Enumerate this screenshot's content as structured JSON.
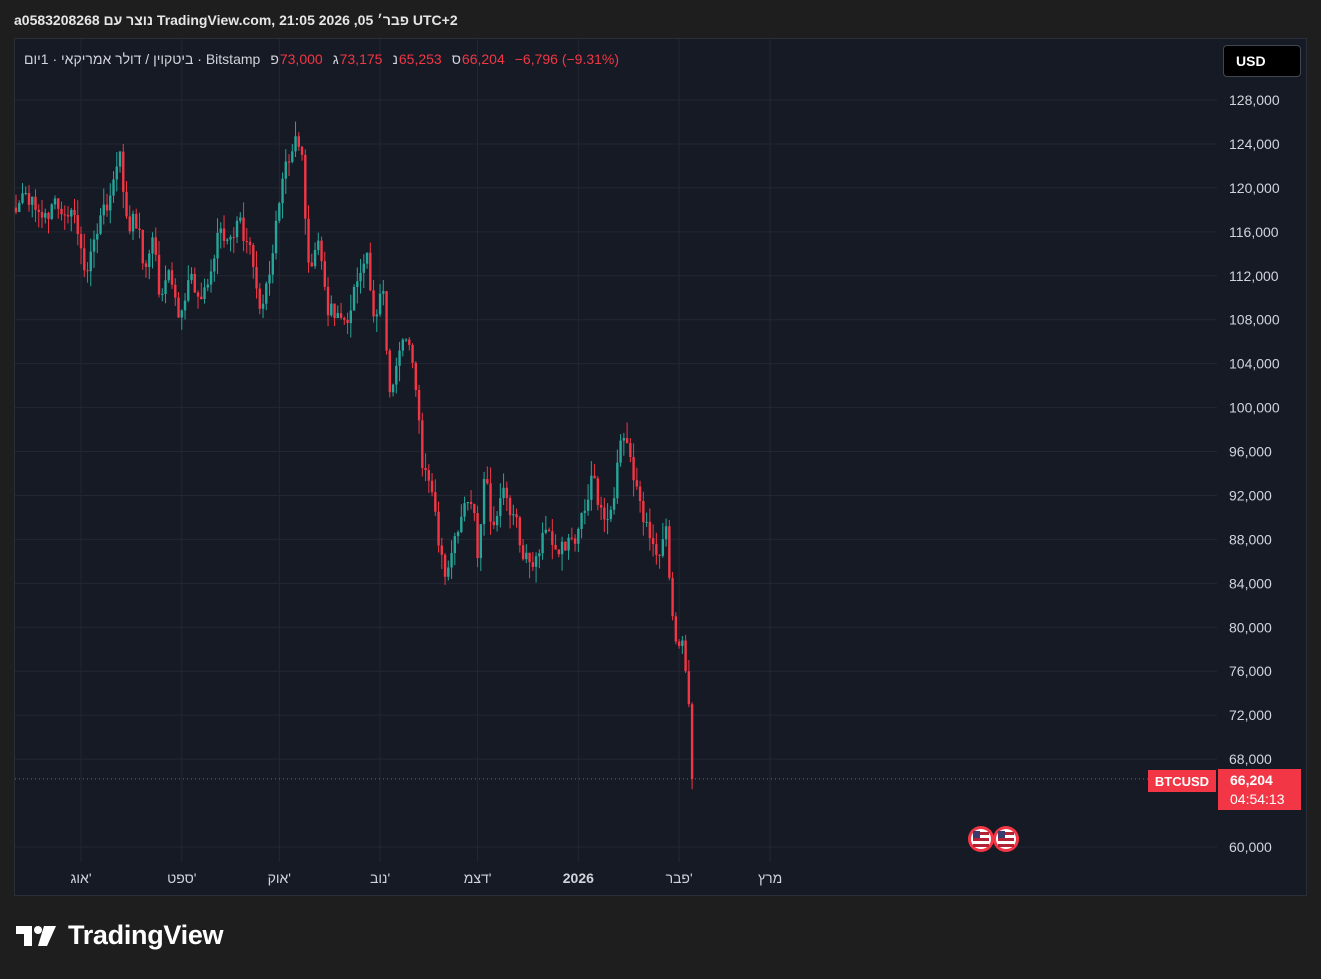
{
  "header": {
    "author_line": "a0583208268 נוצר עם TradingView.com, 21:05 2026 ,05 פבר׳ UTC+2"
  },
  "legend": {
    "symbol_line": "ביטקוין / דולר אמריקאי · 1יום · Bitstamp",
    "open_label": "פ",
    "open": "73,000",
    "high_label": "ג",
    "high": "73,175",
    "low_label": "נ",
    "low": "65,253",
    "close_label": "ס",
    "close": "66,204",
    "change": "−6,796 (−9.31%)"
  },
  "currency_button": "USD",
  "price_tag": {
    "symbol": "BTCUSD",
    "price": "66,204",
    "countdown": "04:54:13"
  },
  "brand": "TradingView",
  "colors": {
    "up": "#26a69a",
    "down": "#f23645",
    "background": "#161a25",
    "grid": "#232733",
    "axis_text": "#d1d4dc"
  },
  "event_icons": [
    "us-flag-icon",
    "us-flag-icon"
  ],
  "chart_data": {
    "type": "candlestick",
    "y_ticks": [
      "128,000",
      "124,000",
      "120,000",
      "116,000",
      "112,000",
      "108,000",
      "104,000",
      "100,000",
      "96,000",
      "92,000",
      "88,000",
      "84,000",
      "80,000",
      "76,000",
      "72,000",
      "68,000",
      "60,000"
    ],
    "y_tick_values": [
      128000,
      124000,
      120000,
      116000,
      112000,
      108000,
      104000,
      100000,
      96000,
      92000,
      88000,
      84000,
      80000,
      76000,
      72000,
      68000,
      60000
    ],
    "ylim": [
      59000,
      131000
    ],
    "x_ticks": [
      "אוג'",
      "ספט'",
      "אוק'",
      "נוב'",
      "דצמ'",
      "2026",
      "פבר'",
      "מרץ"
    ],
    "x_tick_bold": [
      false,
      false,
      false,
      false,
      false,
      true,
      false,
      false
    ],
    "x_tick_dates": [
      "2025-08-01",
      "2025-09-01",
      "2025-10-01",
      "2025-11-01",
      "2025-12-01",
      "2026-01-01",
      "2026-02-01",
      "2026-03-01"
    ],
    "xlim": [
      "2025-07-12",
      "2026-03-20"
    ],
    "last_price": 66204,
    "closes": [
      {
        "date": "2025-07-12",
        "close": 117800
      },
      {
        "date": "2025-07-14",
        "close": 119500
      },
      {
        "date": "2025-07-17",
        "close": 119200
      },
      {
        "date": "2025-07-20",
        "close": 117300
      },
      {
        "date": "2025-07-23",
        "close": 118500
      },
      {
        "date": "2025-07-26",
        "close": 117600
      },
      {
        "date": "2025-07-29",
        "close": 118000
      },
      {
        "date": "2025-07-31",
        "close": 115800
      },
      {
        "date": "2025-08-02",
        "close": 112500
      },
      {
        "date": "2025-08-04",
        "close": 114200
      },
      {
        "date": "2025-08-07",
        "close": 117500
      },
      {
        "date": "2025-08-10",
        "close": 119300
      },
      {
        "date": "2025-08-13",
        "close": 123300
      },
      {
        "date": "2025-08-15",
        "close": 117400
      },
      {
        "date": "2025-08-18",
        "close": 116300
      },
      {
        "date": "2025-08-21",
        "close": 112800
      },
      {
        "date": "2025-08-23",
        "close": 115500
      },
      {
        "date": "2025-08-25",
        "close": 110300
      },
      {
        "date": "2025-08-28",
        "close": 112500
      },
      {
        "date": "2025-08-31",
        "close": 108200
      },
      {
        "date": "2025-09-03",
        "close": 111600
      },
      {
        "date": "2025-09-06",
        "close": 110100
      },
      {
        "date": "2025-09-09",
        "close": 111200
      },
      {
        "date": "2025-09-12",
        "close": 115900
      },
      {
        "date": "2025-09-15",
        "close": 115300
      },
      {
        "date": "2025-09-18",
        "close": 117000
      },
      {
        "date": "2025-09-21",
        "close": 115100
      },
      {
        "date": "2025-09-23",
        "close": 112800
      },
      {
        "date": "2025-09-25",
        "close": 109000
      },
      {
        "date": "2025-09-28",
        "close": 112100
      },
      {
        "date": "2025-10-01",
        "close": 118600
      },
      {
        "date": "2025-10-03",
        "close": 122400
      },
      {
        "date": "2025-10-06",
        "close": 124700
      },
      {
        "date": "2025-10-08",
        "close": 123000
      },
      {
        "date": "2025-10-10",
        "close": 113200
      },
      {
        "date": "2025-10-13",
        "close": 115200
      },
      {
        "date": "2025-10-16",
        "close": 108400
      },
      {
        "date": "2025-10-19",
        "close": 108600
      },
      {
        "date": "2025-10-22",
        "close": 107700
      },
      {
        "date": "2025-10-25",
        "close": 111500
      },
      {
        "date": "2025-10-28",
        "close": 114100
      },
      {
        "date": "2025-10-30",
        "close": 108300
      },
      {
        "date": "2025-11-02",
        "close": 110600
      },
      {
        "date": "2025-11-04",
        "close": 101400
      },
      {
        "date": "2025-11-06",
        "close": 103800
      },
      {
        "date": "2025-11-09",
        "close": 106200
      },
      {
        "date": "2025-11-12",
        "close": 101600
      },
      {
        "date": "2025-11-14",
        "close": 94500
      },
      {
        "date": "2025-11-17",
        "close": 92300
      },
      {
        "date": "2025-11-20",
        "close": 86600
      },
      {
        "date": "2025-11-21",
        "close": 84600
      },
      {
        "date": "2025-11-24",
        "close": 88300
      },
      {
        "date": "2025-11-27",
        "close": 91300
      },
      {
        "date": "2025-11-30",
        "close": 90400
      },
      {
        "date": "2025-12-01",
        "close": 86300
      },
      {
        "date": "2025-12-03",
        "close": 93500
      },
      {
        "date": "2025-12-06",
        "close": 89300
      },
      {
        "date": "2025-12-09",
        "close": 92700
      },
      {
        "date": "2025-12-12",
        "close": 90300
      },
      {
        "date": "2025-12-15",
        "close": 86200
      },
      {
        "date": "2025-12-18",
        "close": 85500
      },
      {
        "date": "2025-12-21",
        "close": 88600
      },
      {
        "date": "2025-12-24",
        "close": 87500
      },
      {
        "date": "2025-12-27",
        "close": 87800
      },
      {
        "date": "2025-12-31",
        "close": 87600
      },
      {
        "date": "2026-01-03",
        "close": 90600
      },
      {
        "date": "2026-01-05",
        "close": 93800
      },
      {
        "date": "2026-01-08",
        "close": 90900
      },
      {
        "date": "2026-01-11",
        "close": 90700
      },
      {
        "date": "2026-01-14",
        "close": 97000
      },
      {
        "date": "2026-01-17",
        "close": 95500
      },
      {
        "date": "2026-01-20",
        "close": 91500
      },
      {
        "date": "2026-01-22",
        "close": 89600
      },
      {
        "date": "2026-01-25",
        "close": 86600
      },
      {
        "date": "2026-01-28",
        "close": 89200
      },
      {
        "date": "2026-01-29",
        "close": 84500
      },
      {
        "date": "2026-01-31",
        "close": 78700
      },
      {
        "date": "2026-02-02",
        "close": 78800
      },
      {
        "date": "2026-02-03",
        "close": 76000
      },
      {
        "date": "2026-02-04",
        "close": 73000
      },
      {
        "date": "2026-02-05",
        "close": 66204
      }
    ]
  }
}
